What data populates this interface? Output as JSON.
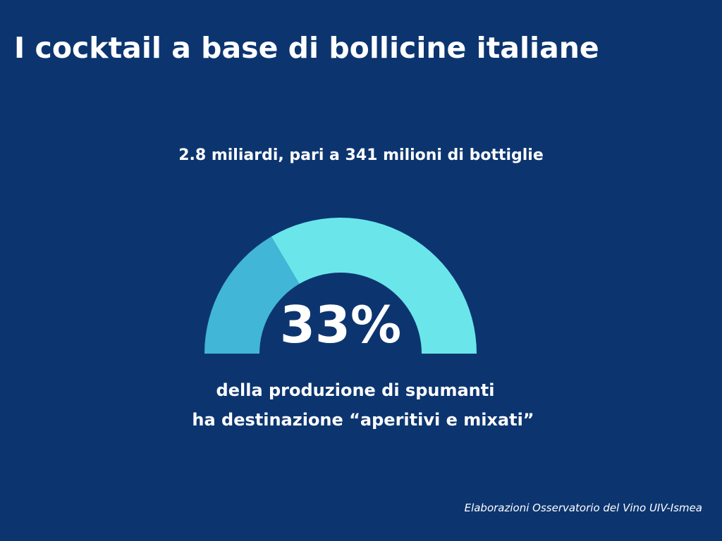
{
  "header": {
    "title": "I cocktail a base di bollicine italiane"
  },
  "chart_data": {
    "type": "pie",
    "subtitle": "2.8 miliardi, pari a 341 milioni di bottiglie",
    "value_percent": 33,
    "value_label": "33%",
    "caption_lines": [
      "della produzione di spumanti",
      "ha destinazione “aperitivi e mixati”"
    ],
    "colors": {
      "highlight": "#41b6d6",
      "remainder": "#6ae6ea"
    }
  },
  "footer": {
    "source": "Elaborazioni Osservatorio del Vino UIV-Ismea"
  }
}
